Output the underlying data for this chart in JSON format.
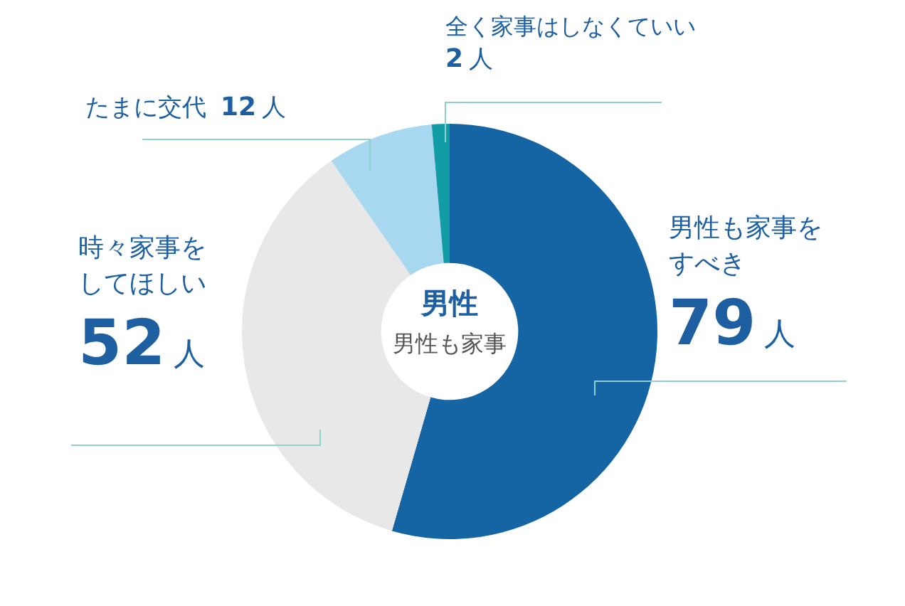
{
  "chart_data": {
    "type": "donut",
    "title": "男性",
    "subtitle": "男性も家事",
    "categories": [
      "男性も家事をすべき",
      "時々家事をしてほしい",
      "たまに交代",
      "全く家事はしなくていい"
    ],
    "values": [
      79,
      52,
      12,
      2
    ],
    "value_labels": [
      "79人",
      "52人",
      "12人",
      "2人"
    ],
    "colors": [
      "#1565a5",
      "#e8e8e8",
      "#a8d8ef",
      "#129ca6"
    ],
    "legend": false
  }
}
